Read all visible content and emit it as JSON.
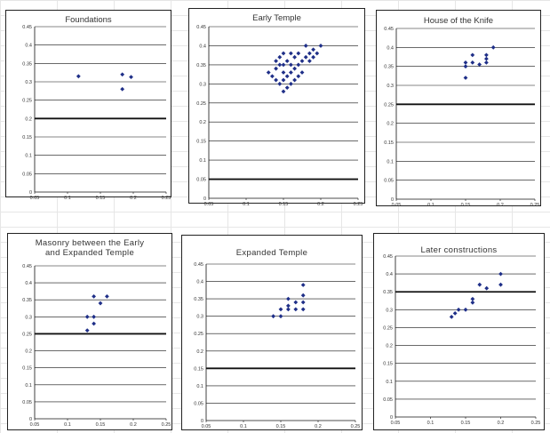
{
  "theme": {
    "marker_color": "#1f2f88",
    "axis_color": "#111111",
    "grid_color": "#111111"
  },
  "chart_data": [
    {
      "type": "scatter",
      "title": "Foundations",
      "xlim": [
        0.05,
        0.2
      ],
      "ylim": [
        0,
        0.45
      ],
      "x_ticks": [
        "0.05",
        "0.1",
        "0.15",
        "0.2",
        "0.25"
      ],
      "y_ticks": [
        "0",
        "0.05",
        "0.1",
        "0.15",
        "0.2",
        "0.25",
        "0.3",
        "0.35",
        "0.4",
        "0.45"
      ],
      "reference_line": 0.2,
      "points": [
        [
          0.1,
          0.315
        ],
        [
          0.15,
          0.32
        ],
        [
          0.16,
          0.313
        ],
        [
          0.15,
          0.28
        ]
      ]
    },
    {
      "type": "scatter",
      "title": "Early Temple",
      "xlim": [
        0.05,
        0.25
      ],
      "ylim": [
        0,
        0.45
      ],
      "x_ticks": [
        "0.05",
        "0.1",
        "0.15",
        "0.2",
        "0.25"
      ],
      "y_ticks": [
        "0",
        "0.05",
        "0.1",
        "0.15",
        "0.2",
        "0.25",
        "0.3",
        "0.35",
        "0.4",
        "0.45"
      ],
      "reference_line": 0.05,
      "points": [
        [
          0.13,
          0.33
        ],
        [
          0.135,
          0.32
        ],
        [
          0.14,
          0.31
        ],
        [
          0.14,
          0.34
        ],
        [
          0.14,
          0.36
        ],
        [
          0.145,
          0.3
        ],
        [
          0.145,
          0.35
        ],
        [
          0.145,
          0.37
        ],
        [
          0.15,
          0.28
        ],
        [
          0.15,
          0.31
        ],
        [
          0.15,
          0.33
        ],
        [
          0.15,
          0.35
        ],
        [
          0.15,
          0.38
        ],
        [
          0.155,
          0.29
        ],
        [
          0.155,
          0.32
        ],
        [
          0.155,
          0.36
        ],
        [
          0.16,
          0.3
        ],
        [
          0.16,
          0.33
        ],
        [
          0.16,
          0.35
        ],
        [
          0.16,
          0.38
        ],
        [
          0.165,
          0.31
        ],
        [
          0.165,
          0.34
        ],
        [
          0.165,
          0.37
        ],
        [
          0.17,
          0.32
        ],
        [
          0.17,
          0.35
        ],
        [
          0.17,
          0.38
        ],
        [
          0.175,
          0.36
        ],
        [
          0.18,
          0.37
        ],
        [
          0.18,
          0.4
        ],
        [
          0.185,
          0.36
        ],
        [
          0.185,
          0.38
        ],
        [
          0.19,
          0.37
        ],
        [
          0.19,
          0.39
        ],
        [
          0.195,
          0.38
        ],
        [
          0.2,
          0.4
        ],
        [
          0.175,
          0.33
        ]
      ]
    },
    {
      "type": "scatter",
      "title": "House of the Knife",
      "xlim": [
        0.05,
        0.25
      ],
      "ylim": [
        0,
        0.45
      ],
      "x_ticks": [
        "0.05",
        "0.1",
        "0.15",
        "0.2",
        "0.25"
      ],
      "y_ticks": [
        "0",
        "0.05",
        "0.1",
        "0.15",
        "0.2",
        "0.25",
        "0.3",
        "0.35",
        "0.4",
        "0.45"
      ],
      "reference_line": 0.25,
      "points": [
        [
          0.15,
          0.32
        ],
        [
          0.15,
          0.35
        ],
        [
          0.15,
          0.36
        ],
        [
          0.16,
          0.36
        ],
        [
          0.16,
          0.38
        ],
        [
          0.17,
          0.355
        ],
        [
          0.18,
          0.36
        ],
        [
          0.18,
          0.37
        ],
        [
          0.18,
          0.38
        ],
        [
          0.19,
          0.4
        ]
      ]
    },
    {
      "type": "scatter",
      "title": "Masonry between the Early\nand Expanded Temple",
      "xlim": [
        0.05,
        0.25
      ],
      "ylim": [
        0,
        0.45
      ],
      "x_ticks": [
        "0.05",
        "0.1",
        "0.15",
        "0.2",
        "0.25"
      ],
      "y_ticks": [
        "0",
        "0.05",
        "0.1",
        "0.15",
        "0.2",
        "0.25",
        "0.3",
        "0.35",
        "0.4",
        "0.45"
      ],
      "reference_line": 0.25,
      "points": [
        [
          0.13,
          0.26
        ],
        [
          0.13,
          0.3
        ],
        [
          0.14,
          0.28
        ],
        [
          0.14,
          0.3
        ],
        [
          0.14,
          0.36
        ],
        [
          0.15,
          0.34
        ],
        [
          0.16,
          0.36
        ]
      ]
    },
    {
      "type": "scatter",
      "title": "Expanded Temple",
      "xlim": [
        0.05,
        0.25
      ],
      "ylim": [
        0,
        0.45
      ],
      "x_ticks": [
        "0.05",
        "0.1",
        "0.15",
        "0.2",
        "0.25"
      ],
      "y_ticks": [
        "0",
        "0.05",
        "0.1",
        "0.15",
        "0.2",
        "0.25",
        "0.3",
        "0.35",
        "0.4",
        "0.45"
      ],
      "reference_line": 0.15,
      "points": [
        [
          0.14,
          0.3
        ],
        [
          0.15,
          0.3
        ],
        [
          0.15,
          0.32
        ],
        [
          0.16,
          0.32
        ],
        [
          0.16,
          0.33
        ],
        [
          0.16,
          0.35
        ],
        [
          0.17,
          0.32
        ],
        [
          0.17,
          0.34
        ],
        [
          0.18,
          0.32
        ],
        [
          0.18,
          0.34
        ],
        [
          0.18,
          0.36
        ],
        [
          0.18,
          0.39
        ]
      ]
    },
    {
      "type": "scatter",
      "title": "Later constructions",
      "xlim": [
        0.05,
        0.25
      ],
      "ylim": [
        0,
        0.45
      ],
      "x_ticks": [
        "0.05",
        "0.1",
        "0.15",
        "0.2",
        "0.25"
      ],
      "y_ticks": [
        "0",
        "0.05",
        "0.1",
        "0.15",
        "0.2",
        "0.25",
        "0.3",
        "0.35",
        "0.4",
        "0.45"
      ],
      "reference_line": 0.35,
      "points": [
        [
          0.13,
          0.28
        ],
        [
          0.135,
          0.29
        ],
        [
          0.14,
          0.3
        ],
        [
          0.15,
          0.3
        ],
        [
          0.16,
          0.32
        ],
        [
          0.16,
          0.33
        ],
        [
          0.17,
          0.37
        ],
        [
          0.18,
          0.36
        ],
        [
          0.2,
          0.37
        ],
        [
          0.2,
          0.4
        ]
      ]
    }
  ]
}
